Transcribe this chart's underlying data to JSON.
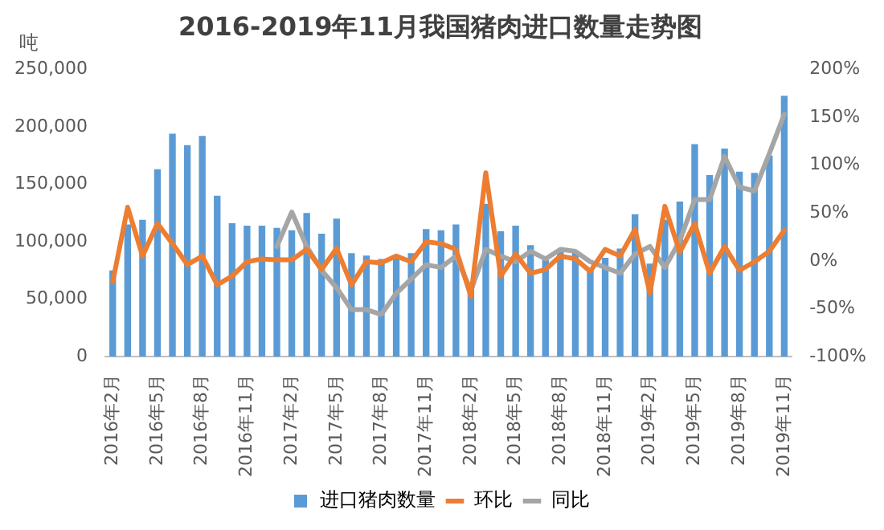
{
  "chart_data": {
    "type": "bar",
    "title": "2016-2019年11月我国猪肉进口数量走势图",
    "ylabel": "吨",
    "categories": [
      "2016年2月",
      null,
      null,
      "2016年5月",
      null,
      null,
      "2016年8月",
      null,
      null,
      "2016年11月",
      null,
      null,
      "2017年2月",
      null,
      null,
      "2017年5月",
      null,
      null,
      "2017年8月",
      null,
      null,
      "2017年11月",
      null,
      null,
      "2018年2月",
      null,
      null,
      "2018年5月",
      null,
      null,
      "2018年8月",
      null,
      null,
      "2018年11月",
      null,
      null,
      "2019年2月",
      null,
      null,
      "2019年5月",
      null,
      null,
      "2019年8月",
      null,
      null,
      "2019年11月"
    ],
    "series": [
      {
        "name": "进口猪肉数量",
        "color": "#5b9bd5",
        "values": [
          75000,
          115000,
          119000,
          163000,
          194000,
          184000,
          192000,
          140000,
          116000,
          114000,
          114000,
          112000,
          110000,
          125000,
          107000,
          120000,
          90000,
          88000,
          85000,
          88000,
          90000,
          111000,
          110000,
          115000,
          65000,
          133000,
          109000,
          114000,
          97000,
          84000,
          91000,
          91000,
          76000,
          86000,
          94000,
          124000,
          81000,
          119000,
          135000,
          185000,
          158000,
          181000,
          161000,
          160000,
          175000,
          227000
        ]
      },
      {
        "name": "环比",
        "type": "line",
        "axis": "y2",
        "color": "#ed7d31",
        "values": [
          -22,
          56,
          5,
          39,
          18,
          -4,
          5,
          -25,
          -16,
          -1,
          2,
          1,
          1,
          12,
          -9,
          13,
          -25,
          -1,
          -2,
          5,
          -1,
          20,
          18,
          12,
          -37,
          92,
          -16,
          7,
          -13,
          -9,
          5,
          2,
          -11,
          12,
          5,
          33,
          -34,
          57,
          9,
          39,
          -13,
          15,
          -10,
          -1,
          10,
          32
        ]
      },
      {
        "name": "同比",
        "type": "line",
        "axis": "y2",
        "color": "#a5a5a5",
        "values": [
          null,
          null,
          null,
          null,
          null,
          null,
          null,
          null,
          null,
          null,
          null,
          15,
          51,
          15,
          -10,
          -28,
          -51,
          -51,
          -56,
          -34,
          -19,
          -4,
          -7,
          5,
          -31,
          12,
          5,
          -1,
          10,
          2,
          12,
          10,
          -1,
          -7,
          -13,
          7,
          15,
          -7,
          21,
          64,
          64,
          109,
          77,
          73,
          112,
          153
        ]
      }
    ],
    "ylim": [
      0,
      250000
    ],
    "yticks": [
      {
        "value": 0,
        "label": "0"
      },
      {
        "value": 50000,
        "label": "50,000"
      },
      {
        "value": 100000,
        "label": "100,000"
      },
      {
        "value": 150000,
        "label": "150,000"
      },
      {
        "value": 200000,
        "label": "200,000"
      },
      {
        "value": 250000,
        "label": "250,000"
      }
    ],
    "y2lim": [
      -100,
      200
    ],
    "y2ticks": [
      {
        "value": -100,
        "label": "-100%"
      },
      {
        "value": -50,
        "label": "-50%"
      },
      {
        "value": 0,
        "label": "0%"
      },
      {
        "value": 50,
        "label": "50%"
      },
      {
        "value": 100,
        "label": "100%"
      },
      {
        "value": 150,
        "label": "150%"
      },
      {
        "value": 200,
        "label": "200%"
      }
    ],
    "grid": false,
    "legend": "bottom",
    "marker": "none",
    "line_style": "solid"
  }
}
